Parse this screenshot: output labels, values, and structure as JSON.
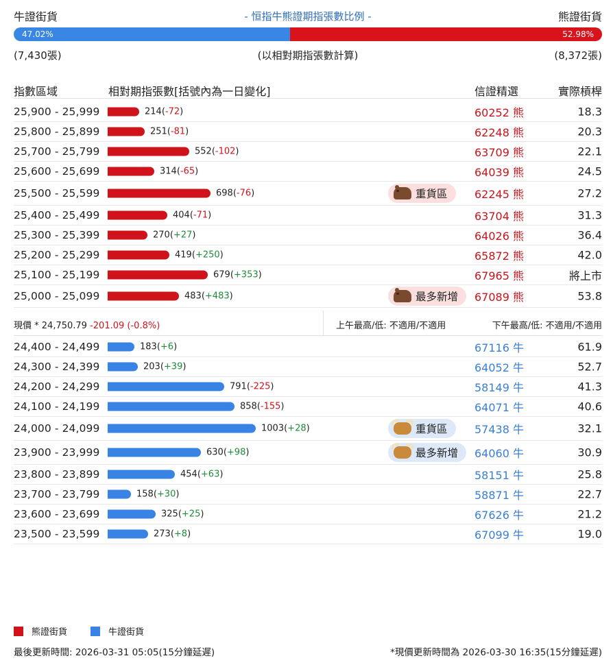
{
  "header": {
    "bull_label": "牛證街貨",
    "title": "- 恒指牛熊證期指張數比例 -",
    "bear_label": "熊證街貨"
  },
  "ratio": {
    "bull_percent": "47.02%",
    "bear_percent": "52.98%",
    "bull_fraction": 0.4702,
    "bull_color": "#3a86e4",
    "bear_color": "#d8131b"
  },
  "counts": {
    "bull_count": "(7,430張)",
    "note": "(以相對期指張數計算)",
    "bear_count": "(8,372張)"
  },
  "columns": {
    "range": "指數區域",
    "volume": "相對期指張數[括號內為一日變化]",
    "pick": "信證精選",
    "leverage": "實際槓桿"
  },
  "bear_rows": [
    {
      "range": "25,900 - 25,999",
      "contracts": 214,
      "change": "-72",
      "code": "60252",
      "kind": "熊",
      "leverage": "18.3"
    },
    {
      "range": "25,800 - 25,899",
      "contracts": 251,
      "change": "-81",
      "code": "62248",
      "kind": "熊",
      "leverage": "20.3"
    },
    {
      "range": "25,700 - 25,799",
      "contracts": 552,
      "change": "-102",
      "code": "63709",
      "kind": "熊",
      "leverage": "22.1"
    },
    {
      "range": "25,600 - 25,699",
      "contracts": 314,
      "change": "-65",
      "code": "64039",
      "kind": "熊",
      "leverage": "24.5"
    },
    {
      "range": "25,500 - 25,599",
      "contracts": 698,
      "change": "-76",
      "code": "62245",
      "kind": "熊",
      "leverage": "27.2",
      "tag": "重貨區"
    },
    {
      "range": "25,400 - 25,499",
      "contracts": 404,
      "change": "-71",
      "code": "63704",
      "kind": "熊",
      "leverage": "31.3"
    },
    {
      "range": "25,300 - 25,399",
      "contracts": 270,
      "change": "+27",
      "code": "64026",
      "kind": "熊",
      "leverage": "36.4"
    },
    {
      "range": "25,200 - 25,299",
      "contracts": 419,
      "change": "+250",
      "code": "65872",
      "kind": "熊",
      "leverage": "42.0"
    },
    {
      "range": "25,100 - 25,199",
      "contracts": 679,
      "change": "+353",
      "code": "67965",
      "kind": "熊",
      "leverage": "將上市"
    },
    {
      "range": "25,000 - 25,099",
      "contracts": 483,
      "change": "+483",
      "code": "67089",
      "kind": "熊",
      "leverage": "53.8",
      "tag": "最多新增"
    }
  ],
  "price_bar": {
    "label": "現價 *",
    "price": "24,750.79",
    "change": "-201.09 (-0.8%)",
    "am": "上午最高/低: 不適用/不適用",
    "pm": "下午最高/低: 不適用/不適用"
  },
  "bull_rows": [
    {
      "range": "24,400 - 24,499",
      "contracts": 183,
      "change": "+6",
      "code": "67116",
      "kind": "牛",
      "leverage": "61.9"
    },
    {
      "range": "24,300 - 24,399",
      "contracts": 203,
      "change": "+39",
      "code": "64052",
      "kind": "牛",
      "leverage": "52.7"
    },
    {
      "range": "24,200 - 24,299",
      "contracts": 791,
      "change": "-225",
      "code": "58149",
      "kind": "牛",
      "leverage": "41.3"
    },
    {
      "range": "24,100 - 24,199",
      "contracts": 858,
      "change": "-155",
      "code": "64071",
      "kind": "牛",
      "leverage": "40.6"
    },
    {
      "range": "24,000 - 24,099",
      "contracts": 1003,
      "change": "+28",
      "code": "57438",
      "kind": "牛",
      "leverage": "32.1",
      "tag": "重貨區"
    },
    {
      "range": "23,900 - 23,999",
      "contracts": 630,
      "change": "+98",
      "code": "64060",
      "kind": "牛",
      "leverage": "30.9",
      "tag": "最多新增"
    },
    {
      "range": "23,800 - 23,899",
      "contracts": 454,
      "change": "+63",
      "code": "58151",
      "kind": "牛",
      "leverage": "25.8"
    },
    {
      "range": "23,700 - 23,799",
      "contracts": 158,
      "change": "+30",
      "code": "58871",
      "kind": "牛",
      "leverage": "22.7"
    },
    {
      "range": "23,600 - 23,699",
      "contracts": 325,
      "change": "+25",
      "code": "67626",
      "kind": "牛",
      "leverage": "21.2"
    },
    {
      "range": "23,500 - 23,599",
      "contracts": 273,
      "change": "+8",
      "code": "67099",
      "kind": "牛",
      "leverage": "19.0"
    }
  ],
  "legend": {
    "bear_label": "熊證街貨",
    "bull_label": "牛證街貨",
    "bear_color": "#d0131a",
    "bull_color": "#3883e3"
  },
  "footer": {
    "left": "最後更新時間: 2026-03-31 05:05(15分鐘延遲)",
    "right": "*現價更新時間為 2026-03-30 16:35(15分鐘延遲)"
  }
}
